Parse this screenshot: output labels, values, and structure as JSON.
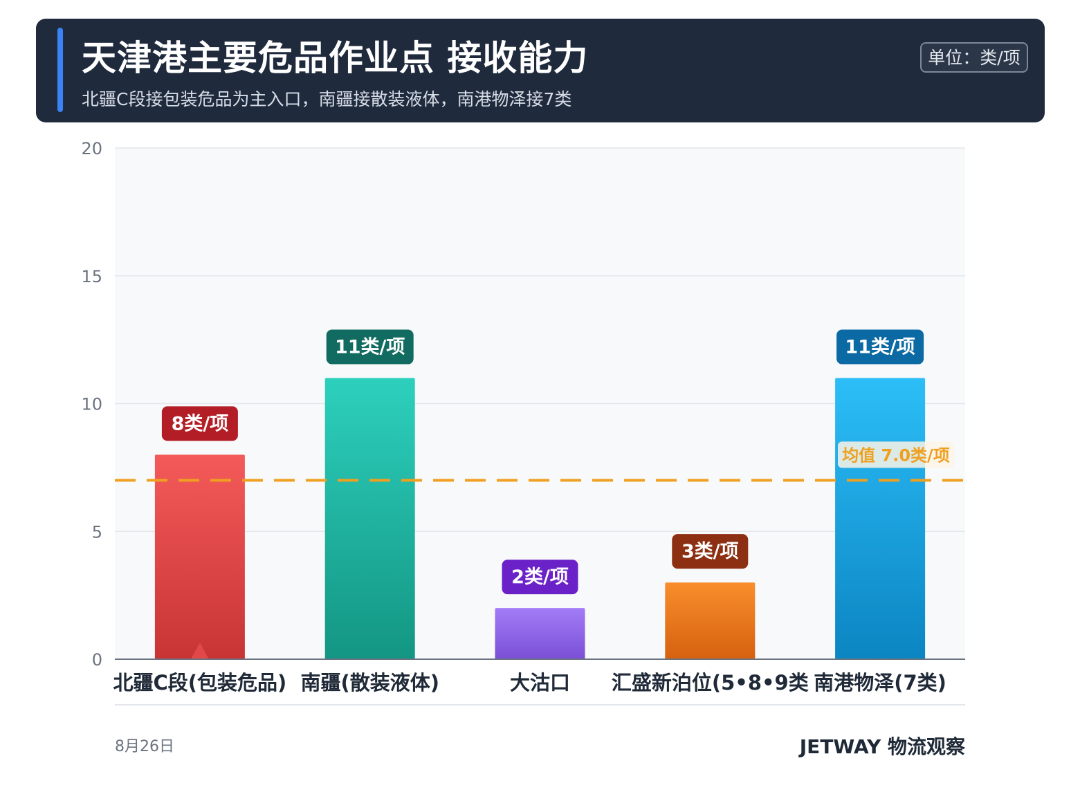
{
  "header": {
    "title": "天津港主要危品作业点 接收能力",
    "subtitle": "北疆C段接包装危品为主入口，南疆接散装液体，南港物泽接7类",
    "unit_badge": "单位：类/项"
  },
  "footer": {
    "date": "8月26日",
    "brand": "JETWAY 物流观察"
  },
  "chart_data": {
    "type": "bar",
    "categories": [
      "北疆C段(包装危品)",
      "南疆(散装液体)",
      "大沽口",
      "汇盛新泊位(5•8•9类",
      "南港物泽(7类)"
    ],
    "values": [
      8,
      11,
      2,
      3,
      11
    ],
    "value_labels": [
      "8类/项",
      "11类/项",
      "2类/项",
      "3类/项",
      "11类/项"
    ],
    "ylim": [
      0,
      20
    ],
    "yticks": [
      0,
      5,
      10,
      15,
      20
    ],
    "grid": true,
    "mean": {
      "value": 7.0,
      "label": "均值 7.0类/项",
      "color": "#f0a020"
    },
    "bar_colors": [
      {
        "top": "#f45a5a",
        "bottom": "#c83434",
        "label_bg": "#b31e26"
      },
      {
        "top": "#2dd0bd",
        "bottom": "#139683",
        "label_bg": "#116b60"
      },
      {
        "top": "#a37cf7",
        "bottom": "#7a4fd6",
        "label_bg": "#6b21c8"
      },
      {
        "top": "#f98e2c",
        "bottom": "#d5610f",
        "label_bg": "#8c2f12"
      },
      {
        "top": "#2cbef8",
        "bottom": "#0b85c2",
        "label_bg": "#0b69a3"
      }
    ],
    "marker": {
      "category_index": 0,
      "shape": "triangle",
      "color": "#e24848"
    }
  }
}
